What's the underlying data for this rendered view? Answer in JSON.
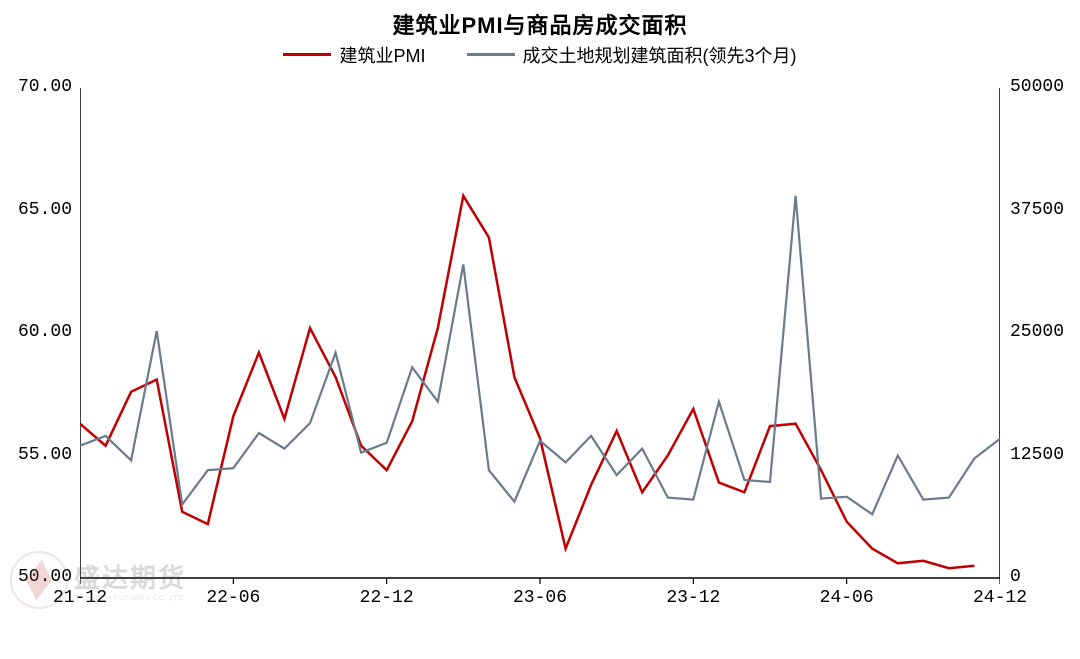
{
  "chart": {
    "type": "line",
    "title": "建筑业PMI与商品房成交面积",
    "title_fontsize": 22,
    "background_color": "#ffffff",
    "axis_color": "#000000",
    "tick_color": "#000000",
    "tick_fontsize": 18,
    "tick_font": "monospace",
    "left_axis": {
      "ylim": [
        50,
        70
      ],
      "ticks": [
        50.0,
        55.0,
        60.0,
        65.0,
        70.0
      ],
      "tick_labels": [
        "50.00",
        "55.00",
        "60.00",
        "65.00",
        "70.00"
      ]
    },
    "right_axis": {
      "ylim": [
        0,
        50000
      ],
      "ticks": [
        0,
        12500,
        25000,
        37500,
        50000
      ],
      "tick_labels": [
        "0",
        "12500",
        "25000",
        "37500",
        "50000"
      ]
    },
    "x_axis": {
      "categories": [
        "21-12",
        "22-01",
        "22-02",
        "22-03",
        "22-04",
        "22-05",
        "22-06",
        "22-07",
        "22-08",
        "22-09",
        "22-10",
        "22-11",
        "22-12",
        "23-01",
        "23-02",
        "23-03",
        "23-04",
        "23-05",
        "23-06",
        "23-07",
        "23-08",
        "23-09",
        "23-10",
        "23-11",
        "23-12",
        "24-01",
        "24-02",
        "24-03",
        "24-04",
        "24-05",
        "24-06",
        "24-07",
        "24-08",
        "24-09",
        "24-10",
        "24-11",
        "24-12"
      ],
      "tick_positions": [
        0,
        6,
        12,
        18,
        24,
        30,
        36
      ],
      "tick_labels": [
        "21-12",
        "22-06",
        "22-12",
        "23-06",
        "23-12",
        "24-06",
        "24-12"
      ]
    },
    "series": [
      {
        "name": "建筑业PMI",
        "legend_label": "建筑业PMI",
        "axis": "left",
        "color": "#c00000",
        "line_width": 2.5,
        "values": [
          56.3,
          55.4,
          57.6,
          58.1,
          52.7,
          52.2,
          56.6,
          59.2,
          56.5,
          60.2,
          58.2,
          55.4,
          54.4,
          56.4,
          60.2,
          65.6,
          63.9,
          58.2,
          55.7,
          51.2,
          53.8,
          56.0,
          53.5,
          55.0,
          56.9,
          53.9,
          53.5,
          56.2,
          56.3,
          54.4,
          52.3,
          51.2,
          50.6,
          50.7,
          50.4,
          50.5,
          null
        ]
      },
      {
        "name": "成交土地规划建筑面积(领先3个月)",
        "legend_label": "成交土地规划建筑面积(领先3个月)",
        "axis": "right",
        "color": "#6a7b8c",
        "line_width": 2.2,
        "values": [
          13500,
          14500,
          12000,
          25200,
          7500,
          11000,
          11200,
          14800,
          13200,
          15800,
          23000,
          12800,
          13800,
          21500,
          18000,
          32000,
          11000,
          7800,
          14000,
          11800,
          14500,
          10500,
          13200,
          8200,
          8000,
          18000,
          10000,
          9800,
          39000,
          8100,
          8300,
          6500,
          12500,
          8000,
          8200,
          12200,
          14200
        ]
      }
    ],
    "legend": {
      "position": "top-center",
      "fontsize": 18
    }
  },
  "watermark": {
    "brand": "盛达期货",
    "sub": "SHENGDA FUTURES CO.,LTD"
  }
}
